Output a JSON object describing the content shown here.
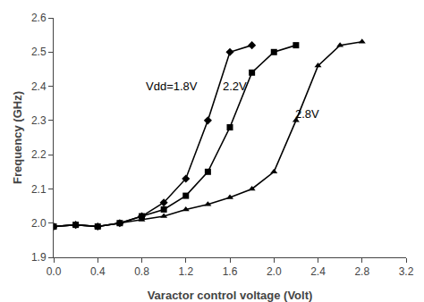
{
  "chart_data": {
    "type": "line",
    "xlabel": "Varactor control voltage (Volt)",
    "ylabel": "Frequency (GHz)",
    "xlim": [
      0,
      3.2
    ],
    "ylim": [
      1.9,
      2.6
    ],
    "xticks": [
      {
        "value": 0,
        "label": "0.0"
      },
      0.4,
      0.8,
      1.2,
      1.6,
      {
        "value": 2.0,
        "label": "2.0"
      },
      2.4,
      2.8,
      3.2
    ],
    "yticks": [
      1.9,
      {
        "value": 2.0,
        "label": "2.0"
      },
      2.1,
      2.2,
      2.3,
      2.4,
      2.5,
      2.6
    ],
    "grid": false,
    "series": [
      {
        "name": "Vdd=1.8V",
        "color": "#000000",
        "marker": "diamond",
        "x": [
          0.0,
          0.2,
          0.4,
          0.6,
          0.8,
          1.0,
          1.2,
          1.4,
          1.6,
          1.8
        ],
        "values": [
          1.99,
          1.995,
          1.99,
          2.0,
          2.02,
          2.06,
          2.13,
          2.3,
          2.5,
          2.52
        ]
      },
      {
        "name": "2.2V",
        "color": "#000000",
        "marker": "square",
        "x": [
          0.0,
          0.2,
          0.4,
          0.6,
          0.8,
          1.0,
          1.2,
          1.4,
          1.6,
          1.8,
          2.0,
          2.2
        ],
        "values": [
          1.99,
          1.995,
          1.99,
          2.0,
          2.02,
          2.04,
          2.08,
          2.15,
          2.28,
          2.44,
          2.5,
          2.52
        ]
      },
      {
        "name": "2.8V",
        "color": "#000000",
        "marker": "triangle-up",
        "x": [
          0.0,
          0.2,
          0.4,
          0.6,
          0.8,
          1.0,
          1.2,
          1.4,
          1.6,
          1.8,
          2.0,
          2.2,
          2.4,
          2.6,
          2.8
        ],
        "values": [
          1.99,
          1.995,
          1.99,
          2.0,
          2.01,
          2.02,
          2.04,
          2.055,
          2.075,
          2.1,
          2.15,
          2.3,
          2.46,
          2.52,
          2.53
        ]
      }
    ],
    "annotations": [
      {
        "text": "Vdd=1.8V",
        "x": 0.82,
        "y": 2.375
      },
      {
        "text": "2.2V",
        "x": 1.52,
        "y": 2.375
      },
      {
        "text": "2.8V",
        "x": 2.18,
        "y": 2.295
      }
    ]
  }
}
